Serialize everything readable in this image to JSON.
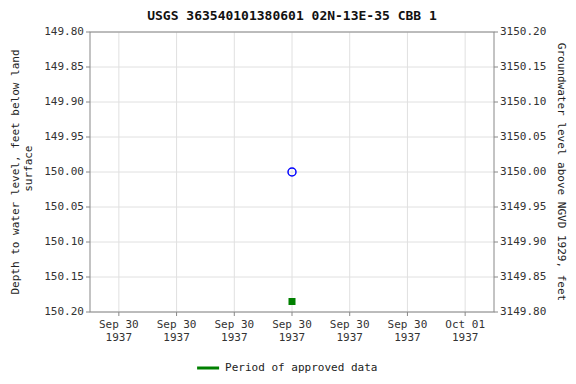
{
  "chart_data": {
    "type": "scatter",
    "title": "USGS 363540101380601 02N-13E-35 CBB 1",
    "y_label": "Depth to water level, feet below land\n surface",
    "y2_label": "Groundwater level above NGVD 1929, feet",
    "categories": [
      "Sep 30\n1937",
      "Sep 30\n1937",
      "Sep 30\n1937",
      "Sep 30\n1937",
      "Sep 30\n1937",
      "Sep 30\n1937",
      "Oct 01\n1937"
    ],
    "series": [
      {
        "color": "#0000ff",
        "marker": "circle",
        "line_style": "none",
        "values": [
          null,
          null,
          null,
          150.0,
          null,
          null,
          null
        ]
      },
      {
        "name": "Period of approved data",
        "color": "#008000",
        "marker": "square",
        "line_style": "none",
        "values": [
          null,
          null,
          null,
          150.185,
          null,
          null,
          null
        ]
      }
    ],
    "ylim": [
      150.2,
      149.8
    ],
    "yticks": [
      {
        "value": 149.8,
        "label": "149.80"
      },
      149.85,
      {
        "value": 149.9,
        "label": "149.90"
      },
      149.95,
      {
        "value": 150.0,
        "label": "150.00"
      },
      150.05,
      {
        "value": 150.1,
        "label": "150.10"
      },
      150.15,
      {
        "value": 150.2,
        "label": "150.20"
      }
    ],
    "y2lim": [
      3149.8,
      3150.2
    ],
    "y2ticks": [
      {
        "value": 3149.8,
        "label": "3149.80"
      },
      3149.85,
      {
        "value": 3149.9,
        "label": "3149.90"
      },
      3149.95,
      {
        "value": 3150.0,
        "label": "3150.00"
      },
      3150.05,
      {
        "value": 3150.1,
        "label": "3150.10"
      },
      3150.15,
      {
        "value": 3150.2,
        "label": "3150.20"
      }
    ],
    "grid": true,
    "legend": "bottom"
  }
}
